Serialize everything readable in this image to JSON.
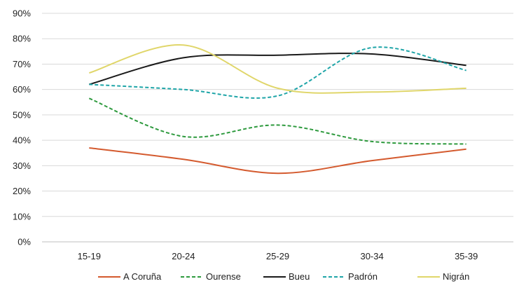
{
  "chart_data": {
    "type": "line",
    "categories": [
      "15-19",
      "20-24",
      "25-29",
      "30-34",
      "35-39"
    ],
    "ylim": [
      0,
      90
    ],
    "yticks": [
      "0%",
      "10%",
      "20%",
      "30%",
      "40%",
      "50%",
      "60%",
      "70%",
      "80%",
      "90%"
    ],
    "grid": true,
    "legend_position": "bottom",
    "series": [
      {
        "name": "A Coruña",
        "values": [
          37,
          32.5,
          27,
          32,
          36.5
        ],
        "color": "#D45A2E",
        "dash": "solid"
      },
      {
        "name": "Ourense",
        "values": [
          56.5,
          41.5,
          46,
          39.5,
          38.5
        ],
        "color": "#2E9A3E",
        "dash": "dashed"
      },
      {
        "name": "Bueu",
        "values": [
          62,
          72.5,
          73.5,
          74,
          69.5
        ],
        "color": "#1A1A1A",
        "dash": "solid"
      },
      {
        "name": "Padrón",
        "values": [
          62,
          60,
          57.5,
          76.5,
          67.5
        ],
        "color": "#1FA5A8",
        "dash": "dashed"
      },
      {
        "name": "Nigrán",
        "values": [
          66.5,
          77.5,
          60.5,
          59,
          60.5
        ],
        "color": "#E0D66A",
        "dash": "solid"
      }
    ]
  }
}
